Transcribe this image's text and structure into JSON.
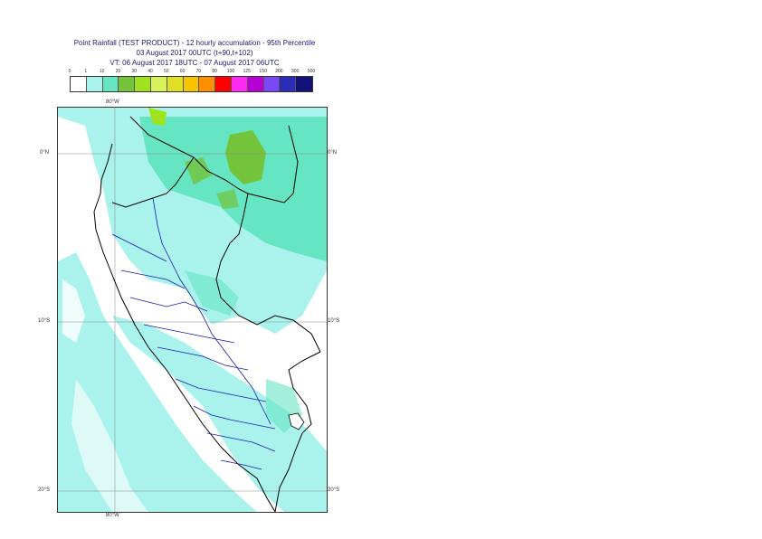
{
  "title": {
    "line1": "Point Rainfall (TEST PRODUCT) - 12 hourly accumulation - 95th Percentile",
    "line2": "03 August 2017 00UTC (t+90,t+102)",
    "line3": "VT: 06 August 2017 18UTC - 07 August 2017 06UTC"
  },
  "legend": {
    "ticks": [
      "0",
      "1",
      "10",
      "20",
      "30",
      "40",
      "50",
      "60",
      "70",
      "80",
      "100",
      "125",
      "150",
      "200",
      "300",
      "500"
    ],
    "colors": [
      "#ffffff",
      "#aaf3ec",
      "#66e5c3",
      "#73c43b",
      "#9ee31e",
      "#d8f25c",
      "#e0e026",
      "#f8c400",
      "#ff8f00",
      "#ff0000",
      "#ff2bf2",
      "#b600d6",
      "#7a48f5",
      "#2b2bb8",
      "#12127a"
    ]
  },
  "map": {
    "lon_label_top": "80°W",
    "lon_label_bottom": "80°W",
    "lat_labels": [
      "0°N",
      "10°S",
      "20°S"
    ],
    "colors": {
      "ocean_light": "#aaf3ec",
      "rain_mid": "#66e5c3",
      "rain_green": "#73c43b",
      "rain_lime": "#9ee31e",
      "border": "#000000",
      "region": "#1a1ab0",
      "grid": "#888888"
    }
  }
}
